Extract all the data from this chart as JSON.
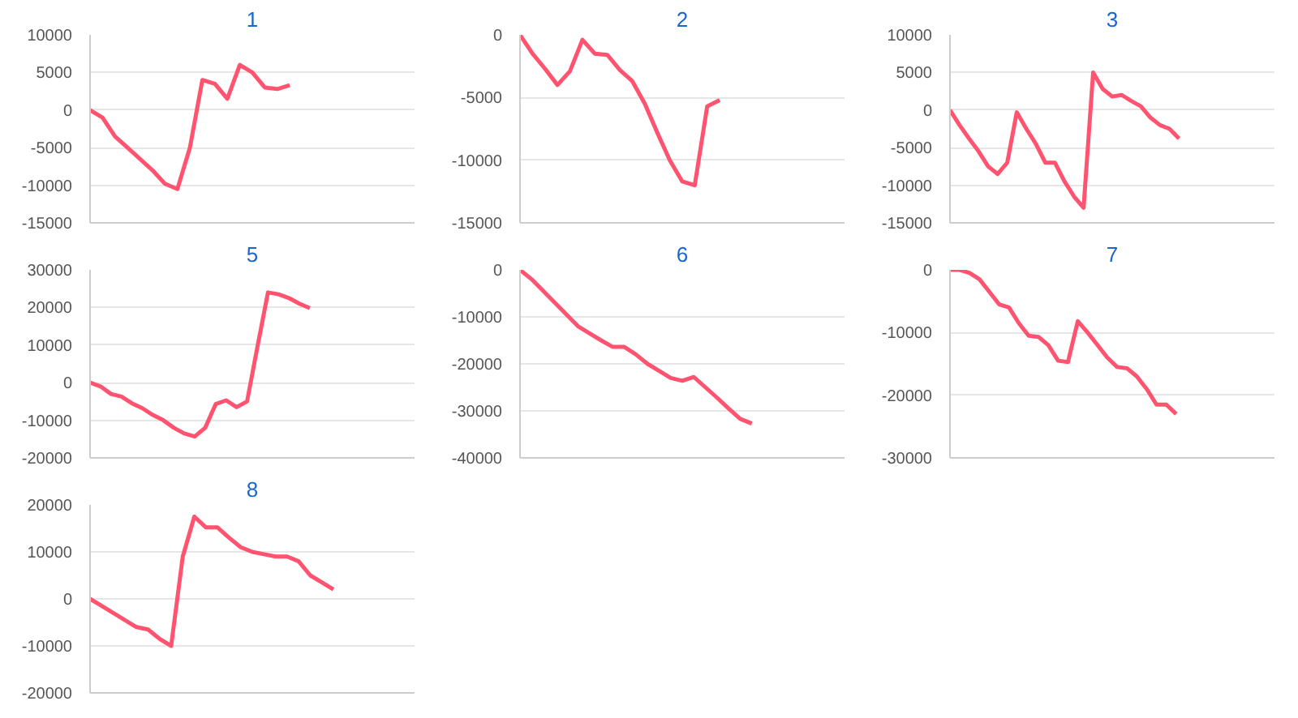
{
  "chart_data": [
    {
      "type": "line",
      "title": "1",
      "categories": [
        null,
        null,
        null,
        null,
        null,
        null,
        null,
        null,
        null,
        null,
        null,
        null,
        null,
        null,
        null,
        null,
        null,
        null,
        null,
        null,
        null,
        null,
        null,
        null,
        null,
        null,
        null
      ],
      "series": [
        {
          "color": "#ff5370",
          "values": [
            0,
            -1000,
            -3500,
            -5000,
            -6500,
            -8000,
            -9800,
            -10500,
            -5000,
            4000,
            3500,
            1500,
            6000,
            5000,
            3000,
            2800,
            3300,
            null,
            null,
            null,
            null,
            null,
            null,
            null,
            null,
            null,
            null
          ]
        }
      ],
      "ylim": [
        -15000,
        10000
      ],
      "yticks": [
        -15000,
        -10000,
        -5000,
        0,
        5000,
        10000
      ],
      "grid": "y",
      "tick_labels": "y"
    },
    {
      "type": "line",
      "title": "2",
      "categories": [
        null,
        null,
        null,
        null,
        null,
        null,
        null,
        null,
        null,
        null,
        null,
        null,
        null,
        null,
        null,
        null,
        null,
        null,
        null,
        null,
        null,
        null,
        null,
        null,
        null,
        null,
        null
      ],
      "series": [
        {
          "color": "#ff5370",
          "values": [
            0,
            -1500,
            -2700,
            -4000,
            -2900,
            -400,
            -1500,
            -1600,
            -2800,
            -3700,
            -5500,
            -7800,
            -10000,
            -11700,
            -12000,
            -5700,
            -5200,
            null,
            null,
            null,
            null,
            null,
            null,
            null,
            null,
            null,
            null
          ]
        }
      ],
      "ylim": [
        -15000,
        0
      ],
      "yticks": [
        -15000,
        -10000,
        -5000,
        0
      ],
      "grid": "y",
      "tick_labels": "y"
    },
    {
      "type": "line",
      "title": "3",
      "categories": [
        null,
        null,
        null,
        null,
        null,
        null,
        null,
        null,
        null,
        null,
        null,
        null,
        null,
        null,
        null,
        null,
        null,
        null,
        null,
        null,
        null,
        null,
        null,
        null,
        null,
        null,
        null,
        null,
        null,
        null,
        null,
        null,
        null,
        null,
        null
      ],
      "series": [
        {
          "color": "#ff5370",
          "values": [
            0,
            -2000,
            -3800,
            -5500,
            -7500,
            -8500,
            -7000,
            -300,
            -2500,
            -4500,
            -7000,
            -7000,
            -9500,
            -11500,
            -13000,
            5000,
            2800,
            1800,
            2000,
            1200,
            500,
            -1000,
            -2000,
            -2500,
            -3800,
            null,
            null,
            null,
            null,
            null,
            null,
            null,
            null,
            null,
            null
          ]
        }
      ],
      "ylim": [
        -15000,
        10000
      ],
      "yticks": [
        -15000,
        -10000,
        -5000,
        0,
        5000,
        10000
      ],
      "grid": "y",
      "tick_labels": "y"
    },
    {
      "type": "line",
      "title": "5",
      "categories": [
        null,
        null,
        null,
        null,
        null,
        null,
        null,
        null,
        null,
        null,
        null,
        null,
        null,
        null,
        null,
        null,
        null,
        null,
        null,
        null,
        null,
        null,
        null,
        null,
        null,
        null,
        null,
        null,
        null,
        null,
        null,
        null
      ],
      "series": [
        {
          "color": "#ff5370",
          "values": [
            0,
            -1000,
            -3000,
            -3700,
            -5500,
            -6800,
            -8600,
            -10000,
            -12000,
            -13500,
            -14300,
            -12000,
            -5700,
            -4700,
            -6500,
            -5000,
            9700,
            24000,
            23500,
            22500,
            21000,
            19800,
            null,
            null,
            null,
            null,
            null,
            null,
            null,
            null,
            null,
            null
          ]
        }
      ],
      "ylim": [
        -20000,
        30000
      ],
      "yticks": [
        -20000,
        -10000,
        0,
        10000,
        20000,
        30000
      ],
      "grid": "y",
      "tick_labels": "y"
    },
    {
      "type": "line",
      "title": "6",
      "categories": [
        null,
        null,
        null,
        null,
        null,
        null,
        null,
        null,
        null,
        null,
        null,
        null,
        null,
        null,
        null,
        null,
        null,
        null,
        null,
        null,
        null,
        null,
        null,
        null,
        null,
        null,
        null,
        null,
        null
      ],
      "series": [
        {
          "color": "#ff5370",
          "values": [
            0,
            -2000,
            -4500,
            -7000,
            -9500,
            -12000,
            -13500,
            -15000,
            -16400,
            -16400,
            -18000,
            -20000,
            -21500,
            -23000,
            -23600,
            -22800,
            -25000,
            -27200,
            -29500,
            -31700,
            -32700,
            null,
            null,
            null,
            null,
            null,
            null,
            null,
            null
          ]
        }
      ],
      "ylim": [
        -40000,
        0
      ],
      "yticks": [
        -40000,
        -30000,
        -20000,
        -10000,
        0
      ],
      "grid": "y",
      "tick_labels": "y"
    },
    {
      "type": "line",
      "title": "7",
      "categories": [
        null,
        null,
        null,
        null,
        null,
        null,
        null,
        null,
        null,
        null,
        null,
        null,
        null,
        null,
        null,
        null,
        null,
        null,
        null,
        null,
        null,
        null,
        null,
        null,
        null,
        null,
        null,
        null,
        null,
        null,
        null,
        null,
        null,
        null
      ],
      "series": [
        {
          "color": "#ff5370",
          "values": [
            0,
            0,
            -500,
            -1500,
            -3500,
            -5500,
            -6000,
            -8500,
            -10500,
            -10700,
            -12000,
            -14500,
            -14700,
            -8200,
            -10000,
            -12000,
            -14000,
            -15500,
            -15700,
            -17000,
            -19000,
            -21500,
            -21500,
            -23000,
            null,
            null,
            null,
            null,
            null,
            null,
            null,
            null,
            null,
            null
          ]
        }
      ],
      "ylim": [
        -30000,
        0
      ],
      "yticks": [
        -30000,
        -20000,
        -10000,
        0
      ],
      "grid": "y",
      "tick_labels": "y"
    },
    {
      "type": "line",
      "title": "8",
      "categories": [
        null,
        null,
        null,
        null,
        null,
        null,
        null,
        null,
        null,
        null,
        null,
        null,
        null,
        null,
        null,
        null,
        null,
        null,
        null,
        null,
        null,
        null,
        null,
        null,
        null,
        null,
        null,
        null,
        null
      ],
      "series": [
        {
          "color": "#ff5370",
          "values": [
            0,
            -1500,
            -3000,
            -4500,
            -6000,
            -6500,
            -8500,
            -10000,
            9000,
            17500,
            15200,
            15200,
            13000,
            11000,
            10000,
            9500,
            9000,
            9000,
            8000,
            5000,
            3500,
            2000,
            null,
            null,
            null,
            null,
            null,
            null,
            null
          ]
        }
      ],
      "ylim": [
        -20000,
        20000
      ],
      "yticks": [
        -20000,
        -10000,
        0,
        10000,
        20000
      ],
      "grid": "y",
      "tick_labels": "y"
    }
  ]
}
